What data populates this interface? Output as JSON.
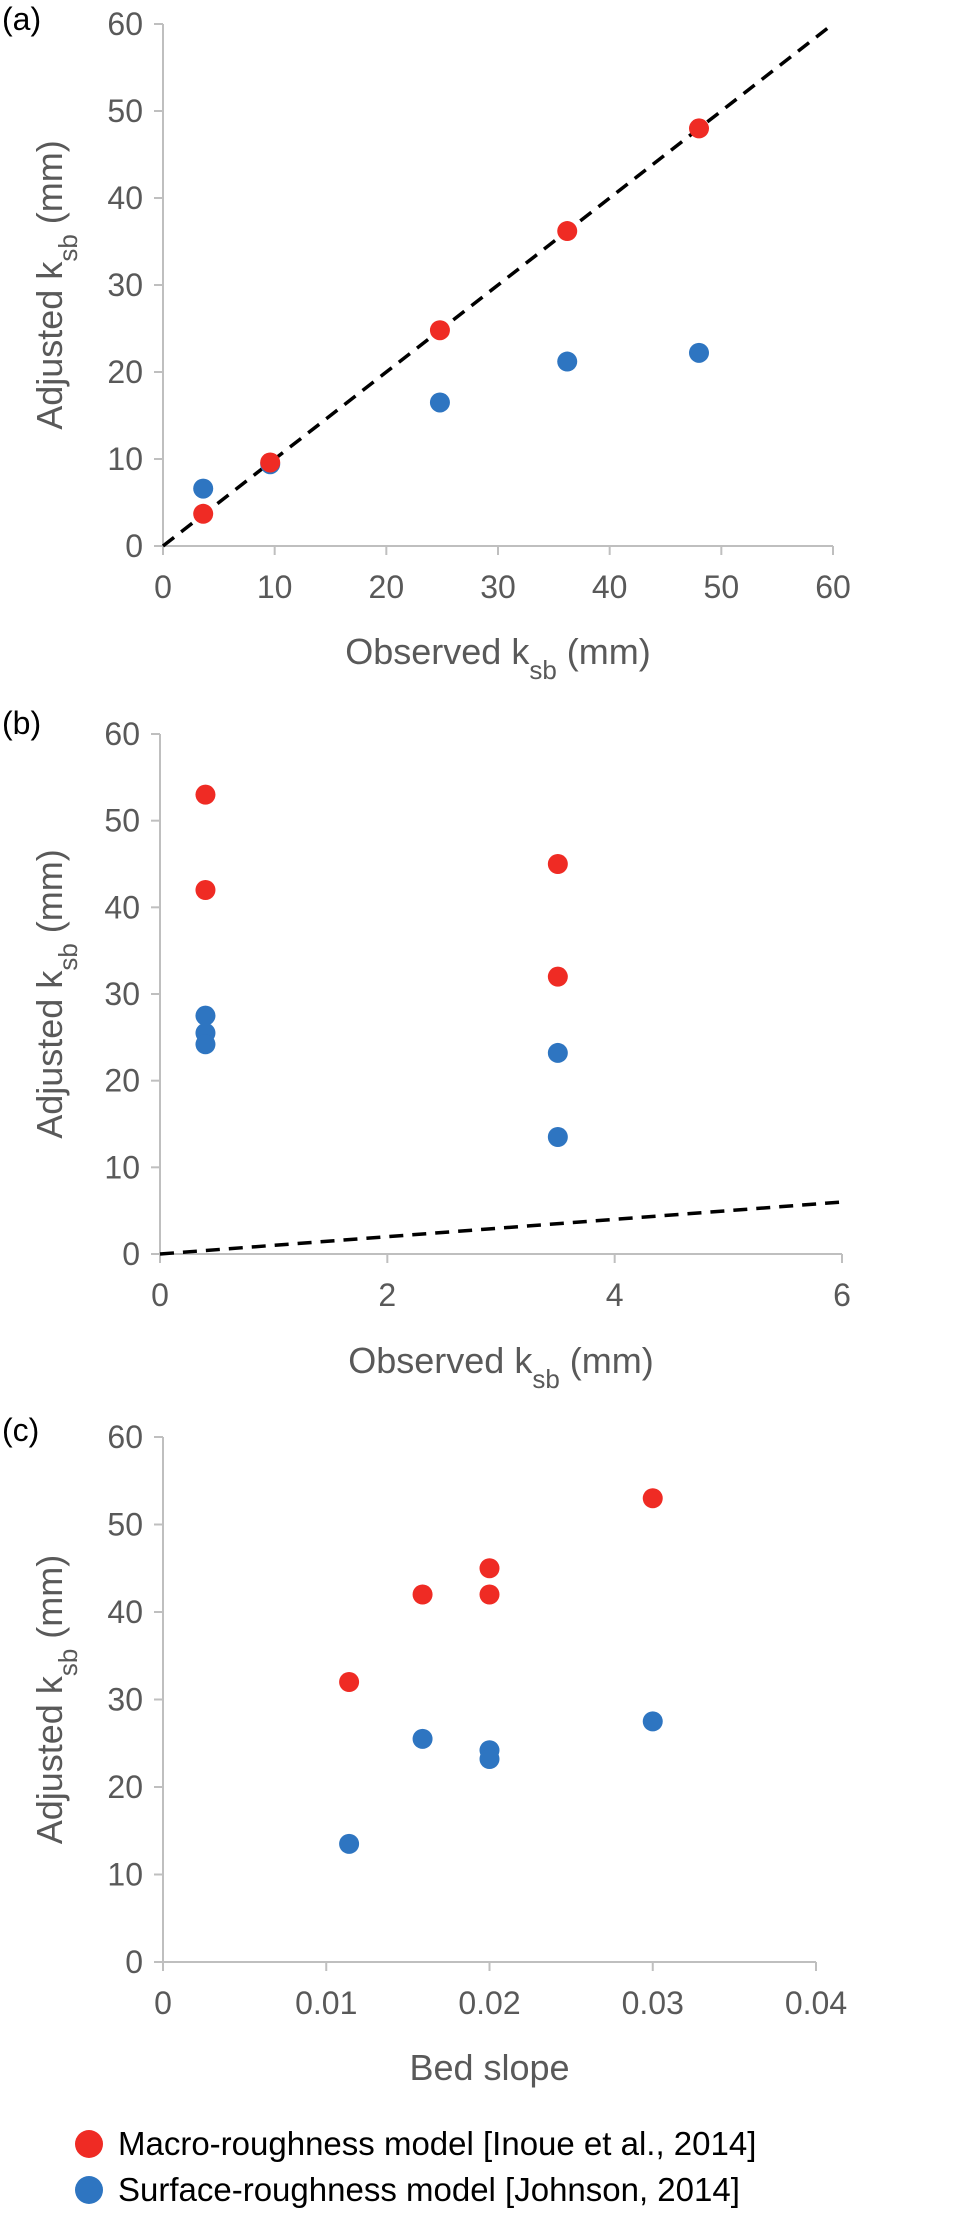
{
  "colors": {
    "macro": "#ef2b24",
    "surface": "#2e75c1",
    "axis": "#bfbfbf",
    "text": "#595959"
  },
  "legend": [
    {
      "key": "macro",
      "label": "Macro-roughness model [Inoue et al., 2014]"
    },
    {
      "key": "surface",
      "label": "Surface-roughness model [Johnson, 2014]"
    }
  ],
  "chart_data": [
    {
      "panel_label": "(a)",
      "type": "scatter",
      "xlabel": {
        "main": "Observed k",
        "sub": "sb",
        "unit": " (mm)"
      },
      "ylabel": {
        "main": "Adjusted k",
        "sub": "sb",
        "unit": " (mm)"
      },
      "xlim": [
        0,
        60
      ],
      "ylim": [
        0,
        60
      ],
      "xticks": [
        0,
        10,
        20,
        30,
        40,
        50,
        60
      ],
      "yticks": [
        0,
        10,
        20,
        30,
        40,
        50,
        60
      ],
      "tick_labels_x": [
        "0",
        "10",
        "20",
        "30",
        "40",
        "50",
        "60"
      ],
      "tick_labels_y": [
        "0",
        "10",
        "20",
        "30",
        "40",
        "50",
        "60"
      ],
      "reference_line": {
        "from": [
          0,
          0
        ],
        "to": [
          60,
          60
        ],
        "style": "dashed"
      },
      "series": [
        {
          "key": "macro",
          "points": [
            [
              3.6,
              3.7
            ],
            [
              9.6,
              9.6
            ],
            [
              24.8,
              24.8
            ],
            [
              36.2,
              36.2
            ],
            [
              48.0,
              48.0
            ]
          ]
        },
        {
          "key": "surface",
          "points": [
            [
              3.6,
              6.6
            ],
            [
              9.6,
              9.4
            ],
            [
              24.8,
              16.5
            ],
            [
              36.2,
              21.2
            ],
            [
              48.0,
              22.2
            ]
          ]
        }
      ]
    },
    {
      "panel_label": "(b)",
      "type": "scatter",
      "xlabel": {
        "main": "Observed k",
        "sub": "sb",
        "unit": " (mm)"
      },
      "ylabel": {
        "main": "Adjusted k",
        "sub": "sb",
        "unit": " (mm)"
      },
      "xlim": [
        0,
        6
      ],
      "ylim": [
        0,
        60
      ],
      "xticks": [
        0,
        2,
        4,
        6
      ],
      "yticks": [
        0,
        10,
        20,
        30,
        40,
        50,
        60
      ],
      "tick_labels_x": [
        "0",
        "2",
        "4",
        "6"
      ],
      "tick_labels_y": [
        "0",
        "10",
        "20",
        "30",
        "40",
        "50",
        "60"
      ],
      "reference_line": {
        "from": [
          0,
          0
        ],
        "to": [
          6,
          6
        ],
        "style": "dashed"
      },
      "series": [
        {
          "key": "macro",
          "points": [
            [
              0.4,
              53
            ],
            [
              0.4,
              42
            ],
            [
              3.5,
              45
            ],
            [
              3.5,
              32
            ]
          ]
        },
        {
          "key": "surface",
          "points": [
            [
              0.4,
              27.5
            ],
            [
              0.4,
              25.5
            ],
            [
              0.4,
              24.2
            ],
            [
              3.5,
              23.2
            ],
            [
              3.5,
              13.5
            ]
          ]
        }
      ]
    },
    {
      "panel_label": "(c)",
      "type": "scatter",
      "xlabel": {
        "main": "Bed slope",
        "sub": "",
        "unit": ""
      },
      "ylabel": {
        "main": "Adjusted k",
        "sub": "sb",
        "unit": " (mm)"
      },
      "xlim": [
        0,
        0.04
      ],
      "ylim": [
        0,
        60
      ],
      "xticks": [
        0,
        0.01,
        0.02,
        0.03,
        0.04
      ],
      "yticks": [
        0,
        10,
        20,
        30,
        40,
        50,
        60
      ],
      "tick_labels_x": [
        "0",
        "0.01",
        "0.02",
        "0.03",
        "0.04"
      ],
      "tick_labels_y": [
        "0",
        "10",
        "20",
        "30",
        "40",
        "50",
        "60"
      ],
      "reference_line": null,
      "series": [
        {
          "key": "macro",
          "points": [
            [
              0.0114,
              32
            ],
            [
              0.0159,
              42
            ],
            [
              0.02,
              45
            ],
            [
              0.02,
              42
            ],
            [
              0.03,
              53
            ]
          ]
        },
        {
          "key": "surface",
          "points": [
            [
              0.0114,
              13.5
            ],
            [
              0.0159,
              25.5
            ],
            [
              0.02,
              24.2
            ],
            [
              0.02,
              23.2
            ],
            [
              0.03,
              27.5
            ]
          ]
        }
      ]
    }
  ]
}
